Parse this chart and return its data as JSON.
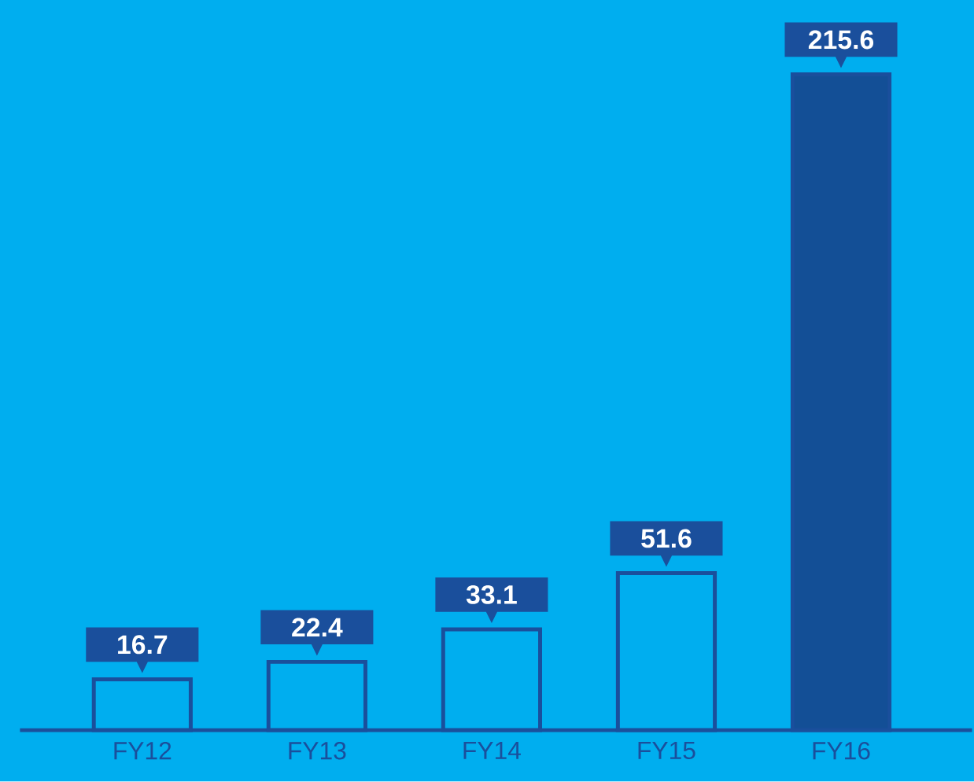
{
  "chart_data": {
    "type": "bar",
    "categories": [
      "FY12",
      "FY13",
      "FY14",
      "FY15",
      "FY16"
    ],
    "values": [
      16.7,
      22.4,
      33.1,
      51.6,
      215.6
    ],
    "colors": [
      "#00aeef",
      "#00aeef",
      "#00aeef",
      "#00aeef",
      "#134f96"
    ],
    "tick_labels": "x",
    "data_labels": true
  }
}
